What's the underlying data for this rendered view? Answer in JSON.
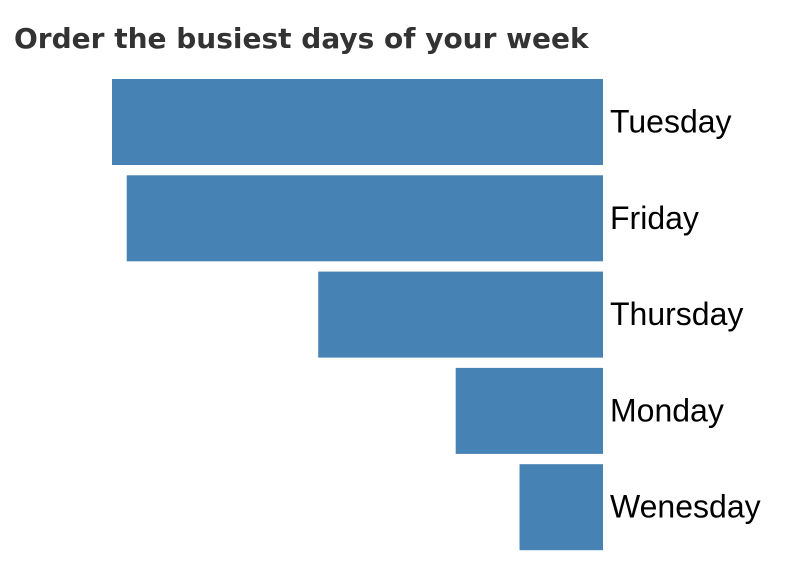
{
  "chart_data": {
    "type": "bar",
    "title": "Order the busiest days of your week",
    "categories": [
      "Tuesday",
      "Friday",
      "Thursday",
      "Monday",
      "Wenesday"
    ],
    "values": [
      100,
      97,
      58,
      30,
      17
    ],
    "color": "#4682b4"
  }
}
